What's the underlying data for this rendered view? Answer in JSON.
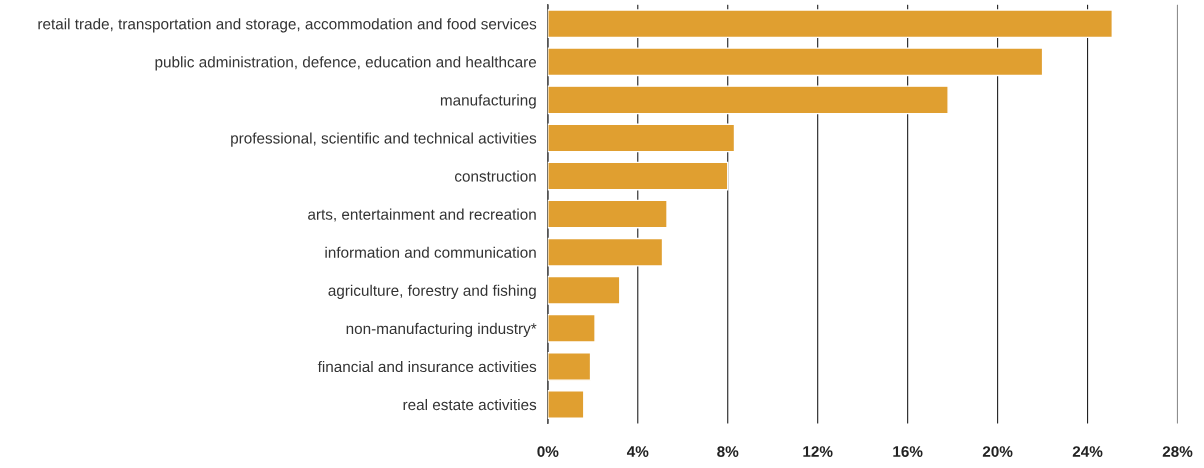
{
  "chart_data": {
    "type": "bar",
    "orientation": "horizontal",
    "categories": [
      "retail trade, transportation and storage, accommodation and food services",
      "public administration, defence, education and healthcare",
      "manufacturing",
      "professional, scientific and technical activities",
      "construction",
      "arts, entertainment and recreation",
      "information and communication",
      "agriculture, forestry and fishing",
      "non-manufacturing industry*",
      "financial and insurance activities",
      "real estate activities"
    ],
    "values": [
      25.1,
      22.0,
      17.8,
      8.3,
      8.0,
      5.3,
      5.1,
      3.2,
      2.1,
      1.9,
      1.6
    ],
    "color": "#e09f30",
    "xlim": [
      0,
      28
    ],
    "xticks": [
      {
        "value": 0,
        "label": "0%"
      },
      {
        "value": 4,
        "label": "4%"
      },
      {
        "value": 8,
        "label": "8%"
      },
      {
        "value": 12,
        "label": "12%"
      },
      {
        "value": 16,
        "label": "16%"
      },
      {
        "value": 20,
        "label": "20%"
      },
      {
        "value": 24,
        "label": "24%"
      },
      {
        "value": 28,
        "label": "28%"
      }
    ],
    "grid": "x"
  }
}
